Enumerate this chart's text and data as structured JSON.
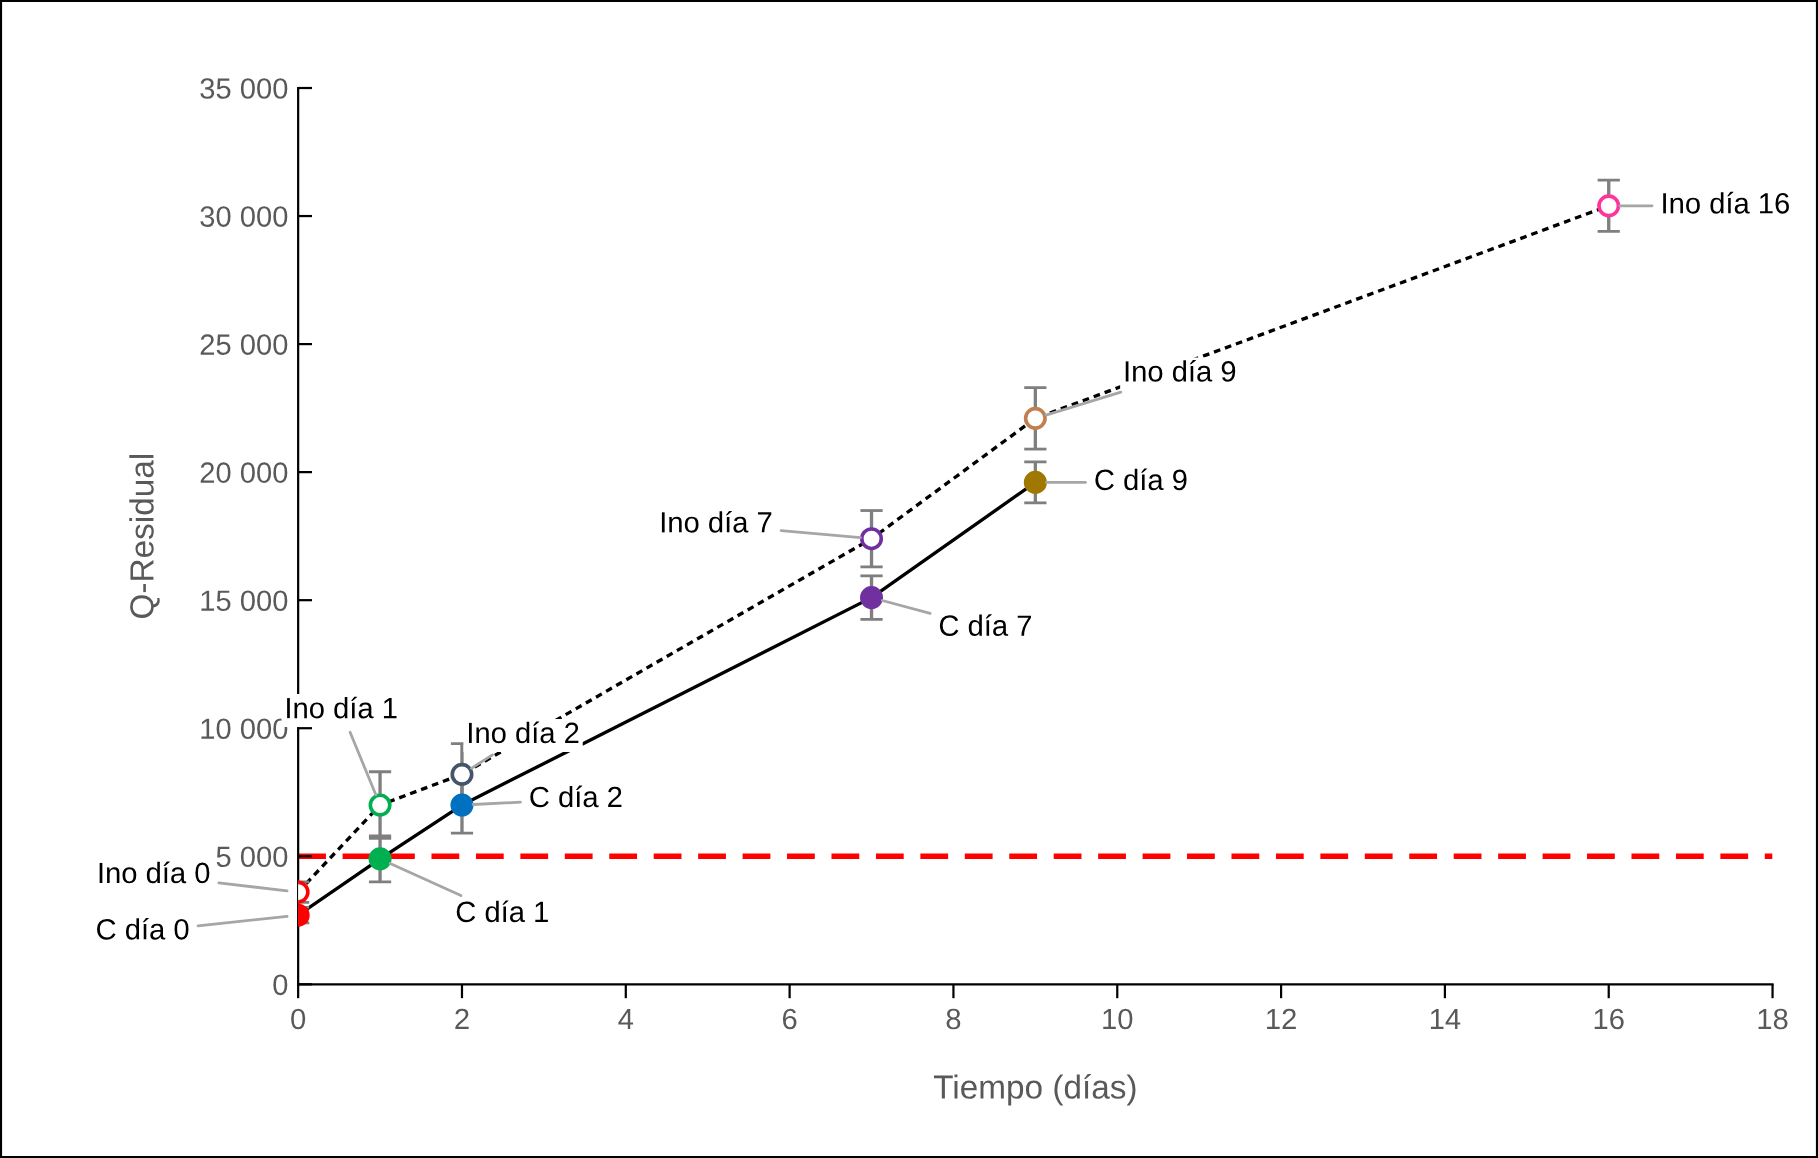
{
  "chart_data": {
    "type": "line",
    "xlabel": "Tiempo (días)",
    "ylabel": "Q-Residual",
    "xlim": [
      0,
      18
    ],
    "xticks": [
      0,
      2,
      4,
      6,
      8,
      10,
      12,
      14,
      16,
      18
    ],
    "ylim": [
      0,
      35000
    ],
    "yticks": [
      {
        "value": 0,
        "label": "0"
      },
      {
        "value": 5000,
        "label": "5 000"
      },
      {
        "value": 10000,
        "label": "10 000"
      },
      {
        "value": 15000,
        "label": "15 000"
      },
      {
        "value": 20000,
        "label": "20 000"
      },
      {
        "value": 25000,
        "label": "25 000"
      },
      {
        "value": 30000,
        "label": "30 000"
      },
      {
        "value": 35000,
        "label": "35 000"
      }
    ],
    "grid": false,
    "legend": false,
    "series": [
      {
        "x": [
          0,
          1,
          2,
          7,
          9,
          16
        ],
        "values": [
          3600,
          7000,
          8200,
          17400,
          22100,
          30400
        ],
        "errors": [
          400,
          1300,
          1200,
          1100,
          1200,
          1000
        ],
        "color": "#000000",
        "colors": [
          "#ff0000",
          "#00b050",
          "#44546a",
          "#7030a0",
          "#c0804f",
          "#ff3399"
        ],
        "line_style": "dotted",
        "marker": "circle"
      },
      {
        "x": [
          0,
          1,
          2,
          7,
          9
        ],
        "values": [
          2700,
          4900,
          7000,
          15100,
          19600
        ],
        "errors": [
          300,
          900,
          1100,
          850,
          800
        ],
        "color": "#000000",
        "colors": [
          "#ff0000",
          "#00b050",
          "#0070c0",
          "#7030a0",
          "#a07800"
        ],
        "line_style": "solid",
        "marker": "circle"
      }
    ],
    "ref_lines": [
      {
        "axis": "y",
        "value": 5000,
        "color": "#ff0000",
        "line_style": "dashed"
      }
    ],
    "annotations": [
      {
        "text": "Ino día 0",
        "x": 0,
        "y": 3600
      },
      {
        "text": "C día 0",
        "x": 0,
        "y": 2700
      },
      {
        "text": "Ino día 1",
        "x": 1,
        "y": 7000
      },
      {
        "text": "C día 1",
        "x": 1,
        "y": 4900
      },
      {
        "text": "Ino día 2",
        "x": 2,
        "y": 8200
      },
      {
        "text": "C día 2",
        "x": 2,
        "y": 7000
      },
      {
        "text": "Ino día 7",
        "x": 7,
        "y": 17400
      },
      {
        "text": "C día 7",
        "x": 7,
        "y": 15100
      },
      {
        "text": "Ino día 9",
        "x": 9,
        "y": 22100
      },
      {
        "text": "C día 9",
        "x": 9,
        "y": 19600
      },
      {
        "text": "Ino día 16",
        "x": 16,
        "y": 30400
      }
    ]
  }
}
